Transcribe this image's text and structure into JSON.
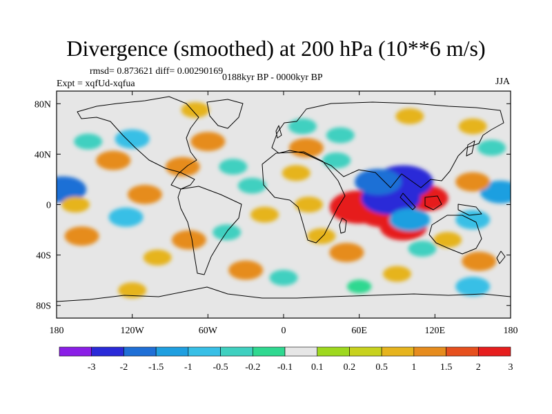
{
  "title": "Divergence (smoothed) at 200 hPa (10**6 m/s)",
  "stats_label": "rmsd= 0.873621 diff= 0.00290169",
  "experiment_label": "Expt = xqfUd-xqfua",
  "period_label": "0188kyr BP - 0000kyr BP",
  "season_label": "JJA",
  "chart_data": {
    "type": "heatmap",
    "title": "Divergence (smoothed) at 200 hPa (10**6 m/s)",
    "variable": "Divergence (smoothed) at 200 hPa",
    "units": "10**6 m/s",
    "experiment": "xqfUd-xqfua",
    "period": "0188kyr BP - 0000kyr BP",
    "season": "JJA",
    "rmsd": 0.873621,
    "diff": 0.00290169,
    "xlim": [
      -180,
      180
    ],
    "ylim": [
      -90,
      90
    ],
    "x_ticks": [
      {
        "value": -180,
        "label": "180"
      },
      {
        "value": -120,
        "label": "120W"
      },
      {
        "value": -60,
        "label": "60W"
      },
      {
        "value": 0,
        "label": "0"
      },
      {
        "value": 60,
        "label": "60E"
      },
      {
        "value": 120,
        "label": "120E"
      },
      {
        "value": 180,
        "label": "180"
      }
    ],
    "y_ticks": [
      {
        "value": 80,
        "label": "80N"
      },
      {
        "value": 40,
        "label": "40N"
      },
      {
        "value": 0,
        "label": "0"
      },
      {
        "value": -40,
        "label": "40S"
      },
      {
        "value": -80,
        "label": "80S"
      }
    ],
    "colorbar": {
      "labels": [
        "-3",
        "-2",
        "-1.5",
        "-1",
        "-0.5",
        "-0.2",
        "-0.1",
        "0.1",
        "0.2",
        "0.5",
        "1",
        "1.5",
        "2",
        "3"
      ],
      "colors": [
        "#8a1ee6",
        "#2a2ad8",
        "#1f6fd6",
        "#1f9fe0",
        "#38bfe6",
        "#3fd0c0",
        "#2fd890",
        "#e6e6e6",
        "#9ed81e",
        "#c8d21e",
        "#e6b41e",
        "#e68c1e",
        "#e6501e",
        "#e61e1e"
      ]
    },
    "features": [
      {
        "lon": 80,
        "lat": -5,
        "value": 3
      },
      {
        "lon": 60,
        "lat": -2,
        "value": 3
      },
      {
        "lon": 95,
        "lat": -18,
        "value": 2
      },
      {
        "lon": 112,
        "lat": 5,
        "value": 2
      },
      {
        "lon": 85,
        "lat": 5,
        "value": -3
      },
      {
        "lon": 95,
        "lat": 18,
        "value": -3
      },
      {
        "lon": 75,
        "lat": 18,
        "value": -2
      },
      {
        "lon": 100,
        "lat": -12,
        "value": -1.5
      },
      {
        "lon": -175,
        "lat": 12,
        "value": -2
      },
      {
        "lon": 172,
        "lat": 10,
        "value": -1.5
      },
      {
        "lon": 150,
        "lat": 18,
        "value": 1
      },
      {
        "lon": -110,
        "lat": 8,
        "value": 1
      },
      {
        "lon": -125,
        "lat": -10,
        "value": -1
      },
      {
        "lon": -160,
        "lat": -25,
        "value": 1
      },
      {
        "lon": -165,
        "lat": 0,
        "value": 0.5
      },
      {
        "lon": -135,
        "lat": 35,
        "value": 1
      },
      {
        "lon": -120,
        "lat": 52,
        "value": -1
      },
      {
        "lon": -155,
        "lat": 50,
        "value": -0.5
      },
      {
        "lon": -80,
        "lat": 30,
        "value": 1
      },
      {
        "lon": -60,
        "lat": 50,
        "value": 1
      },
      {
        "lon": -40,
        "lat": 30,
        "value": -0.5
      },
      {
        "lon": -25,
        "lat": 15,
        "value": -0.5
      },
      {
        "lon": -15,
        "lat": -8,
        "value": 0.5
      },
      {
        "lon": -45,
        "lat": -22,
        "value": -0.5
      },
      {
        "lon": -75,
        "lat": -28,
        "value": 1
      },
      {
        "lon": -100,
        "lat": -42,
        "value": 0.5
      },
      {
        "lon": 10,
        "lat": 25,
        "value": 0.5
      },
      {
        "lon": 18,
        "lat": 45,
        "value": 1
      },
      {
        "lon": 45,
        "lat": 55,
        "value": -0.5
      },
      {
        "lon": 15,
        "lat": 62,
        "value": -0.5
      },
      {
        "lon": 42,
        "lat": 35,
        "value": -0.5
      },
      {
        "lon": 20,
        "lat": 0,
        "value": 0.5
      },
      {
        "lon": 30,
        "lat": -25,
        "value": 0.5
      },
      {
        "lon": 50,
        "lat": -38,
        "value": 1
      },
      {
        "lon": 110,
        "lat": -35,
        "value": -0.5
      },
      {
        "lon": 130,
        "lat": -28,
        "value": 0.5
      },
      {
        "lon": 150,
        "lat": -12,
        "value": -1
      },
      {
        "lon": 155,
        "lat": -45,
        "value": 1
      },
      {
        "lon": -30,
        "lat": -52,
        "value": 1
      },
      {
        "lon": 0,
        "lat": -58,
        "value": -0.5
      },
      {
        "lon": 90,
        "lat": -55,
        "value": 0.5
      },
      {
        "lon": 60,
        "lat": -65,
        "value": -0.2
      },
      {
        "lon": 150,
        "lat": -65,
        "value": -1
      },
      {
        "lon": -120,
        "lat": -68,
        "value": 0.5
      },
      {
        "lon": -70,
        "lat": 75,
        "value": 0.5
      },
      {
        "lon": 100,
        "lat": 70,
        "value": 0.5
      },
      {
        "lon": 150,
        "lat": 62,
        "value": 0.5
      },
      {
        "lon": 165,
        "lat": 45,
        "value": -0.5
      }
    ]
  }
}
